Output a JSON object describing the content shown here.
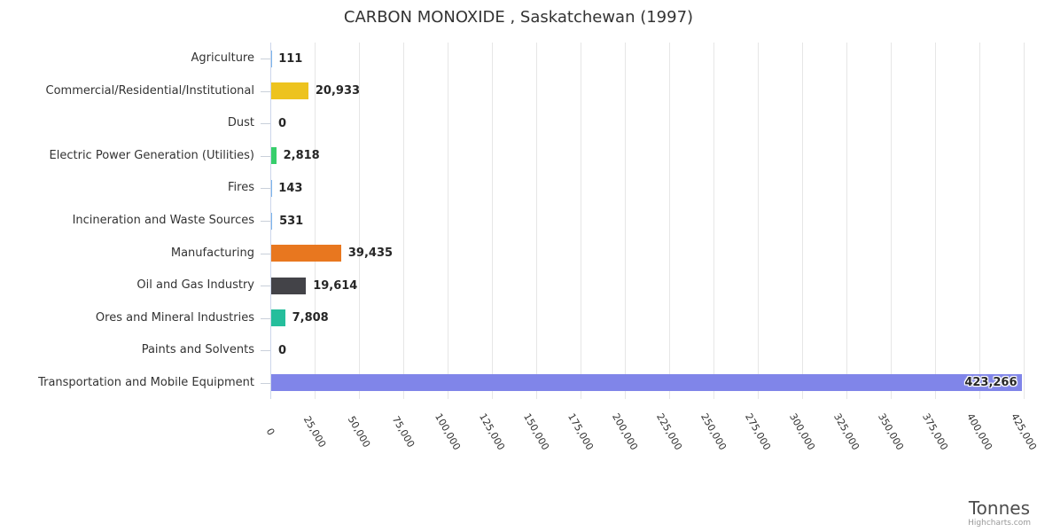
{
  "credits": {
    "label": "Highcharts.com"
  },
  "chart_data": {
    "type": "bar",
    "orientation": "horizontal",
    "title": "CARBON MONOXIDE , Saskatchewan (1997)",
    "categories": [
      "Agriculture",
      "Commercial/Residential/Institutional",
      "Dust",
      "Electric Power Generation (Utilities)",
      "Fires",
      "Incineration and Waste Sources",
      "Manufacturing",
      "Oil and Gas Industry",
      "Ores and Mineral Industries",
      "Paints and Solvents",
      "Transportation and Mobile Equipment"
    ],
    "values": [
      111,
      20933,
      0,
      2818,
      143,
      531,
      39435,
      19614,
      7808,
      0,
      423266
    ],
    "value_labels": [
      "111",
      "20,933",
      "0",
      "2,818",
      "143",
      "531",
      "39,435",
      "19,614",
      "7,808",
      "0",
      "423,266"
    ],
    "point_colors": [
      null,
      "#edc31f",
      null,
      "#37ce6b",
      null,
      null,
      "#e8771f",
      "#434348",
      "#25be9c",
      null,
      "#8085e9"
    ],
    "value_axis": {
      "title": "Tonnes",
      "min": 0,
      "max": 425000,
      "tick_interval": 25000,
      "tick_labels": [
        "0",
        "25,000",
        "50,000",
        "75,000",
        "100,000",
        "125,000",
        "150,000",
        "175,000",
        "200,000",
        "225,000",
        "250,000",
        "275,000",
        "300,000",
        "325,000",
        "350,000",
        "375,000",
        "400,000",
        "425,000"
      ]
    },
    "grid": true,
    "legend": false,
    "colors": {
      "grid": "#e6e6e6",
      "axis_line": "#ccd6eb",
      "category_text": "#333333",
      "value_label_text": "#262626",
      "axis_title_text": "#4d4d4d",
      "credits_text": "#999999",
      "default_bar": "#7cb5ec"
    }
  }
}
